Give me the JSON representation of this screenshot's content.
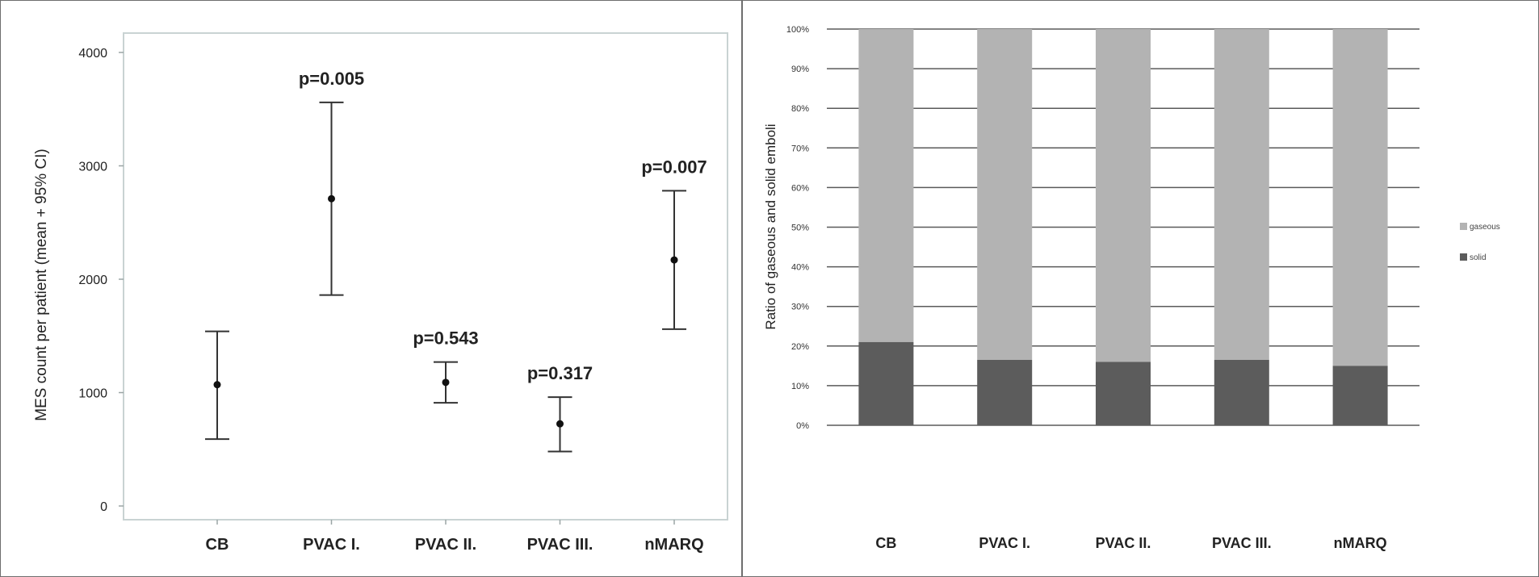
{
  "chart_data": [
    {
      "type": "errorbar",
      "ylabel": "MES count per patient (mean + 95% CI)",
      "xlabel": "",
      "ylim": [
        0,
        4000
      ],
      "yticks": [
        0,
        1000,
        2000,
        3000,
        4000
      ],
      "categories": [
        "CB",
        "PVAC I.",
        "PVAC II.",
        "PVAC III.",
        "nMARQ"
      ],
      "mean": [
        1070,
        2710,
        1090,
        725,
        2170
      ],
      "ci_low": [
        590,
        1860,
        910,
        480,
        1560
      ],
      "ci_high": [
        1540,
        3560,
        1270,
        960,
        2780
      ],
      "annotations": [
        "",
        "p=0.005",
        "p=0.543",
        "p=0.317",
        "p=0.007"
      ],
      "grid": false
    },
    {
      "type": "bar",
      "stacked": true,
      "ylabel": "Ratio of gaseous and solid emboli",
      "xlabel": "",
      "ylim": [
        0,
        100
      ],
      "yticks": [
        "0%",
        "10%",
        "20%",
        "30%",
        "40%",
        "50%",
        "60%",
        "70%",
        "80%",
        "90%",
        "100%"
      ],
      "categories": [
        "CB",
        "PVAC I.",
        "PVAC II.",
        "PVAC III.",
        "nMARQ"
      ],
      "series": [
        {
          "name": "solid",
          "values": [
            21,
            16.5,
            16,
            16.5,
            15
          ],
          "color": "#5c5c5c"
        },
        {
          "name": "gaseous",
          "values": [
            79,
            83.5,
            84,
            83.5,
            85
          ],
          "color": "#b3b3b3"
        }
      ],
      "legend": [
        "gaseous",
        "solid"
      ],
      "legend_position": "right",
      "grid": true
    }
  ]
}
